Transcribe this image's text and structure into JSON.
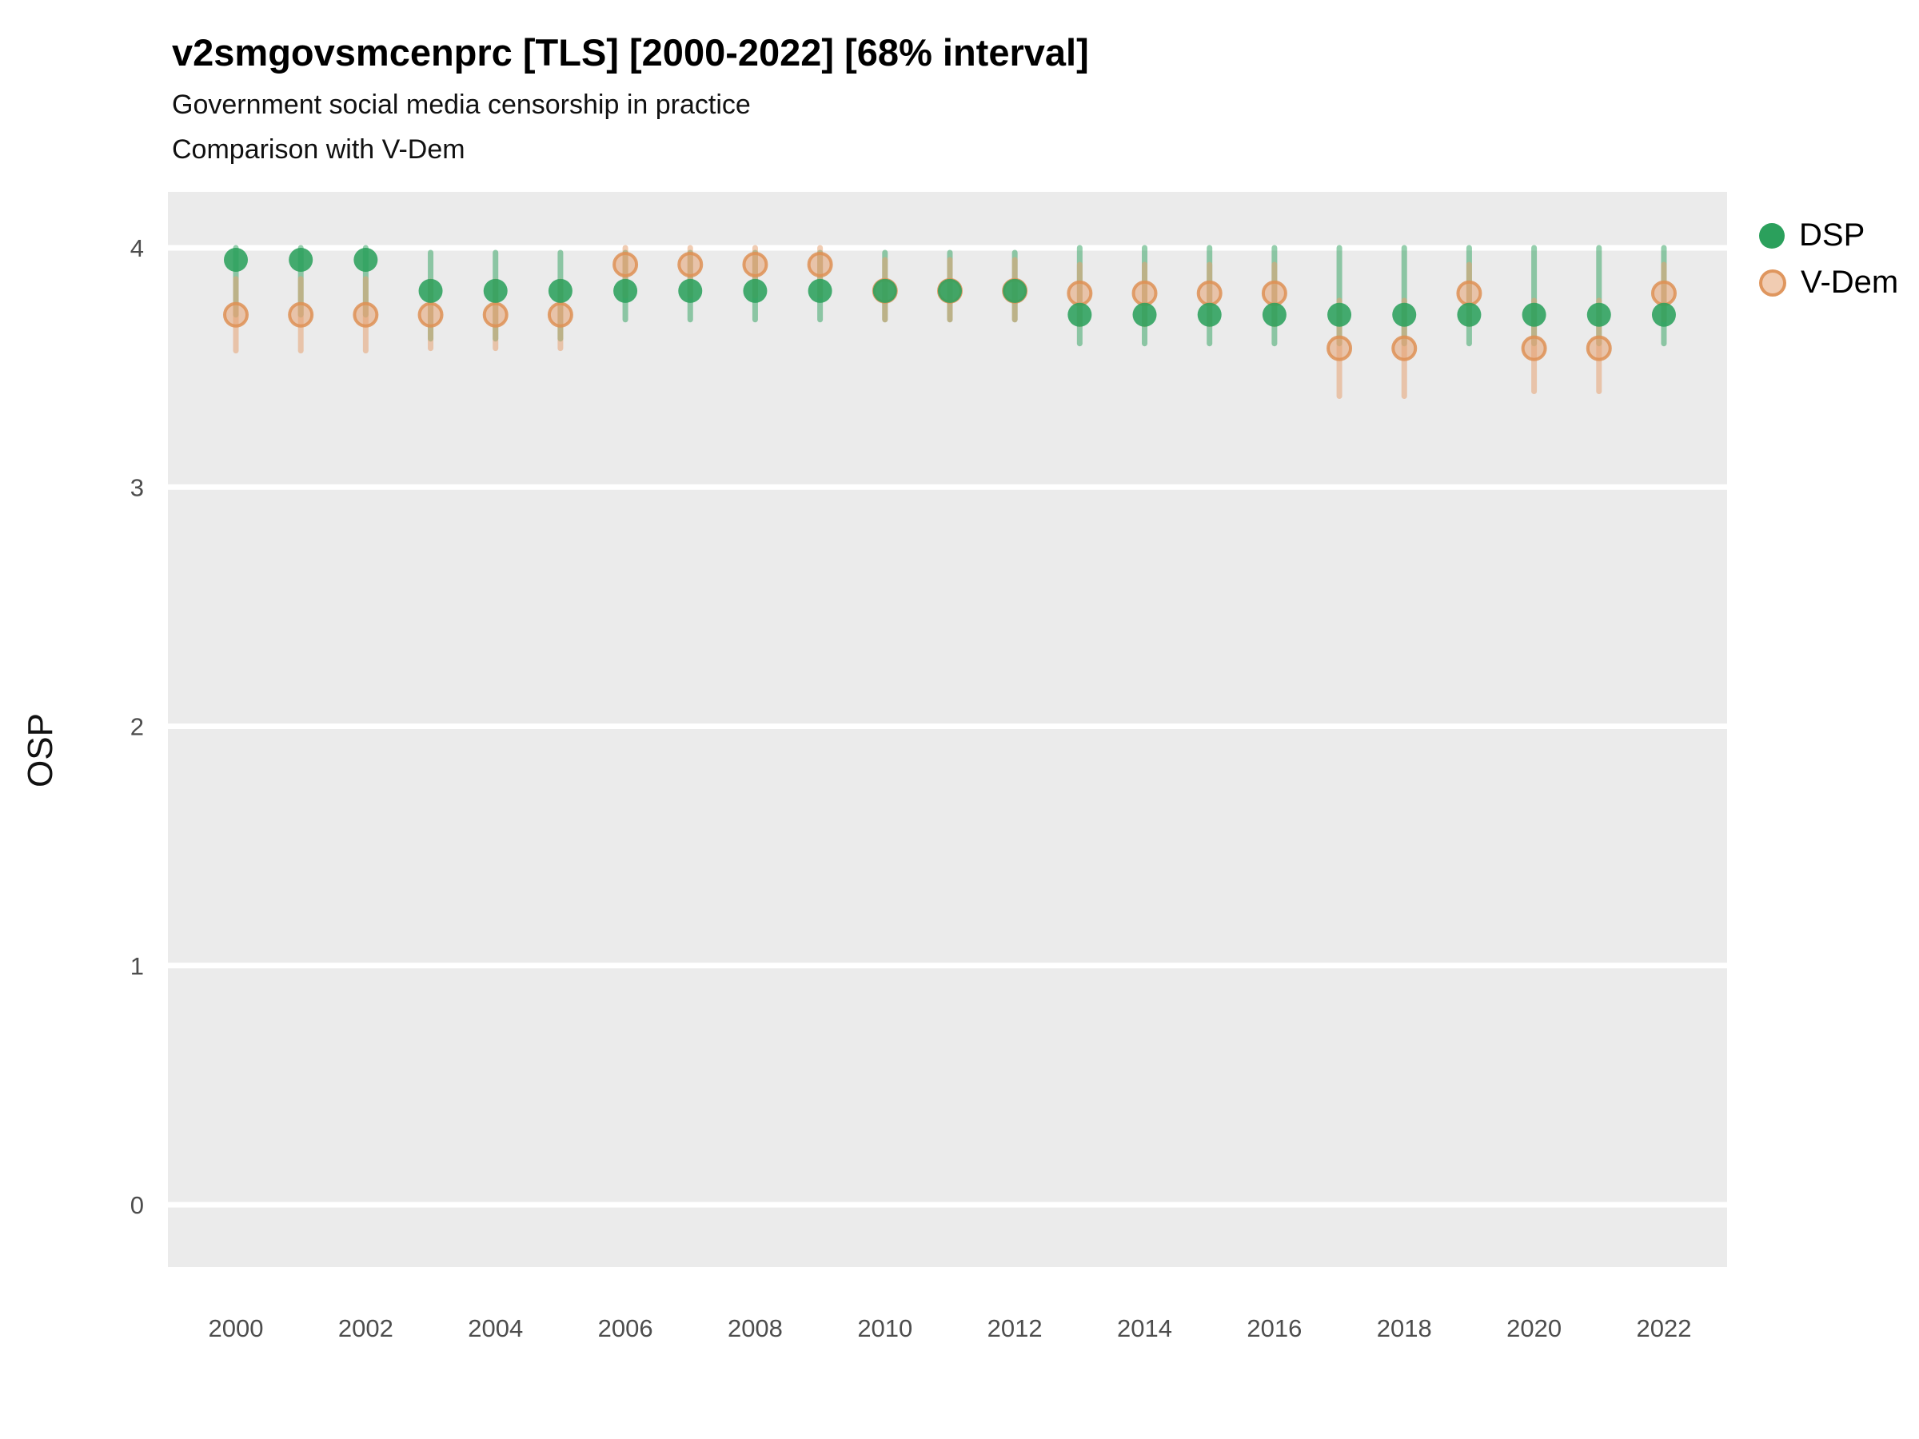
{
  "header": {
    "title": "v2smgovsmcenprc [TLS] [2000-2022] [68% interval]",
    "subtitle1": "Government social media censorship in practice",
    "subtitle2": "Comparison with V-Dem"
  },
  "colors": {
    "panel_bg": "#EBEBEB",
    "grid": "#FFFFFF",
    "tick_label": "#4D4D4D",
    "dsp_green": "#2BA05C",
    "vdem_orange": "#E5A272",
    "vdem_orange_stroke": "#DE9055"
  },
  "chart_data": {
    "type": "scatter",
    "title": "v2smgovsmcenprc [TLS] [2000-2022] [68% interval]",
    "subtitle": [
      "Government social media censorship in practice",
      "Comparison with V-Dem"
    ],
    "xlabel": "",
    "ylabel": "OSP",
    "interval": "68%",
    "grid": "major-horizontal-white",
    "legend_position": "right",
    "ylim": [
      -0.26,
      4.23
    ],
    "y_ticks": [
      0,
      1,
      2,
      3,
      4
    ],
    "x_ticks": [
      2000,
      2002,
      2004,
      2006,
      2008,
      2010,
      2012,
      2014,
      2016,
      2018,
      2020,
      2022
    ],
    "x": [
      2000,
      2001,
      2002,
      2003,
      2004,
      2005,
      2006,
      2007,
      2008,
      2009,
      2010,
      2011,
      2012,
      2013,
      2014,
      2015,
      2016,
      2017,
      2018,
      2019,
      2020,
      2021,
      2022
    ],
    "series": [
      {
        "name": "DSP",
        "color": "#2BA05C",
        "values": [
          3.95,
          3.95,
          3.95,
          3.82,
          3.82,
          3.82,
          3.82,
          3.82,
          3.82,
          3.82,
          3.82,
          3.82,
          3.82,
          3.72,
          3.72,
          3.72,
          3.72,
          3.72,
          3.72,
          3.72,
          3.72,
          3.72,
          3.72
        ],
        "lower": [
          3.72,
          3.72,
          3.72,
          3.62,
          3.62,
          3.62,
          3.7,
          3.7,
          3.7,
          3.7,
          3.7,
          3.7,
          3.7,
          3.6,
          3.6,
          3.6,
          3.6,
          3.6,
          3.6,
          3.6,
          3.6,
          3.6,
          3.6
        ],
        "upper": [
          4.0,
          4.0,
          4.0,
          3.98,
          3.98,
          3.98,
          3.98,
          3.98,
          3.98,
          3.98,
          3.98,
          3.98,
          3.98,
          4.0,
          4.0,
          4.0,
          4.0,
          4.0,
          4.0,
          4.0,
          4.0,
          4.0,
          4.0
        ]
      },
      {
        "name": "V-Dem",
        "color": "#E5A272",
        "stroke": "#DE9055",
        "values": [
          3.72,
          3.72,
          3.72,
          3.72,
          3.72,
          3.72,
          3.93,
          3.93,
          3.93,
          3.93,
          3.82,
          3.82,
          3.82,
          3.81,
          3.81,
          3.81,
          3.81,
          3.58,
          3.58,
          3.81,
          3.58,
          3.58,
          3.81
        ],
        "lower": [
          3.57,
          3.57,
          3.57,
          3.58,
          3.58,
          3.58,
          3.8,
          3.8,
          3.8,
          3.8,
          3.7,
          3.7,
          3.7,
          3.68,
          3.68,
          3.68,
          3.68,
          3.38,
          3.38,
          3.68,
          3.4,
          3.4,
          3.7
        ],
        "upper": [
          3.87,
          3.87,
          3.87,
          3.86,
          3.86,
          3.86,
          4.0,
          4.0,
          4.0,
          4.0,
          3.95,
          3.95,
          3.95,
          3.93,
          3.93,
          3.93,
          3.93,
          3.78,
          3.78,
          3.93,
          3.78,
          3.78,
          3.93
        ]
      }
    ]
  }
}
